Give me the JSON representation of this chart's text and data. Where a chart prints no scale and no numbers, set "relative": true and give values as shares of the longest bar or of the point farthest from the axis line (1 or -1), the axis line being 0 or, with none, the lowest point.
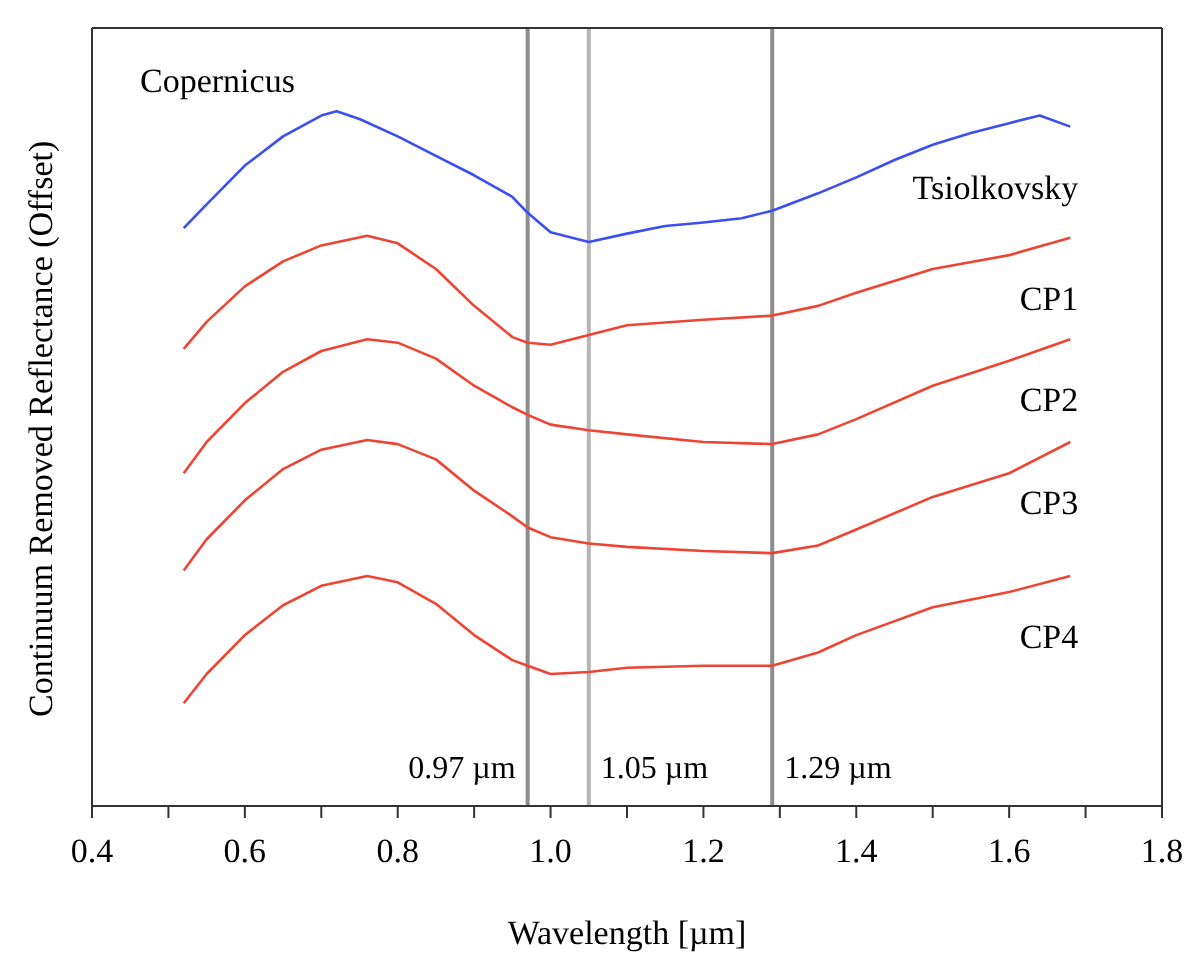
{
  "chart_data": {
    "type": "line",
    "relative": true,
    "xlabel": "Wavelength [µm]",
    "ylabel": "Continuum Removed Reflectance (Offset)",
    "annotations": [
      "Copernicus"
    ],
    "x": [
      0.52,
      0.55,
      0.6,
      0.65,
      0.7,
      0.76,
      0.8,
      0.85,
      0.9,
      0.95,
      0.97,
      1.0,
      1.05,
      1.1,
      1.2,
      1.29,
      1.35,
      1.4,
      1.5,
      1.6,
      1.68
    ],
    "xlim": [
      0.4,
      1.8
    ],
    "xticks": [
      0.4,
      {
        "value": 0.5,
        "label": null
      },
      0.6,
      {
        "value": 0.7,
        "label": null
      },
      0.8,
      {
        "value": 0.9,
        "label": null
      },
      {
        "value": 1,
        "label": "1.0"
      },
      {
        "value": 1.1,
        "label": null
      },
      1.2,
      {
        "value": 1.3,
        "label": null
      },
      1.4,
      {
        "value": 1.5,
        "label": null
      },
      1.6,
      {
        "value": 1.7,
        "label": null
      },
      1.8
    ],
    "series": [
      {
        "name": "Tsiolkovsky",
        "color": "#3b4ef0",
        "x": [
          0.52,
          0.55,
          0.6,
          0.65,
          0.7,
          0.72,
          0.75,
          0.8,
          0.85,
          0.9,
          0.95,
          0.97,
          1.0,
          1.05,
          1.1,
          1.15,
          1.2,
          1.25,
          1.29,
          1.35,
          1.4,
          1.45,
          1.5,
          1.55,
          1.6,
          1.64,
          1.68
        ],
        "values": [
          0.832,
          0.866,
          0.922,
          0.964,
          0.994,
          1,
          0.989,
          0.964,
          0.936,
          0.908,
          0.877,
          0.854,
          0.826,
          0.812,
          0.824,
          0.835,
          0.84,
          0.846,
          0.857,
          0.882,
          0.905,
          0.93,
          0.952,
          0.969,
          0.983,
          0.994,
          0.978
        ]
      },
      {
        "name": "CP1",
        "color": "#ee4433",
        "values": [
          0.658,
          0.697,
          0.748,
          0.784,
          0.807,
          0.821,
          0.81,
          0.773,
          0.72,
          0.675,
          0.667,
          0.664,
          0.678,
          0.692,
          0.7,
          0.706,
          0.72,
          0.739,
          0.773,
          0.793,
          0.818
        ]
      },
      {
        "name": "CP2",
        "color": "#ee4433",
        "values": [
          0.479,
          0.524,
          0.58,
          0.625,
          0.655,
          0.672,
          0.667,
          0.644,
          0.605,
          0.574,
          0.563,
          0.549,
          0.541,
          0.535,
          0.524,
          0.521,
          0.535,
          0.557,
          0.605,
          0.641,
          0.672
        ]
      },
      {
        "name": "CP3",
        "color": "#ee4433",
        "values": [
          0.339,
          0.384,
          0.44,
          0.485,
          0.513,
          0.527,
          0.521,
          0.499,
          0.454,
          0.417,
          0.401,
          0.387,
          0.378,
          0.373,
          0.367,
          0.364,
          0.375,
          0.398,
          0.445,
          0.479,
          0.524
        ]
      },
      {
        "name": "CP4",
        "color": "#ee4433",
        "values": [
          0.148,
          0.19,
          0.246,
          0.289,
          0.317,
          0.331,
          0.322,
          0.291,
          0.246,
          0.21,
          0.202,
          0.19,
          0.193,
          0.199,
          0.202,
          0.202,
          0.221,
          0.246,
          0.286,
          0.308,
          0.331
        ]
      }
    ],
    "ref_lines": [
      {
        "axis": "x",
        "value": 0.97,
        "label": "0.97 µm",
        "color": "#8c8c8c"
      },
      {
        "axis": "x",
        "value": 1.05,
        "label": "1.05 µm",
        "color": "#b4b4b4"
      },
      {
        "axis": "x",
        "value": 1.29,
        "label": "1.29 µm",
        "color": "#8c8c8c"
      }
    ],
    "grid": false,
    "legend": false,
    "marker": "none",
    "line_style": "solid"
  }
}
